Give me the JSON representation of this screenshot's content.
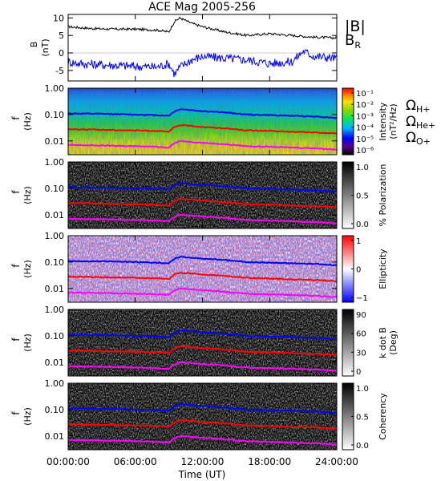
{
  "chart_data": [
    {
      "type": "line",
      "title": "ACE Mag 2005-256",
      "ylabel": "B",
      "yunit": "(nT)",
      "ylim": [
        -8,
        11
      ],
      "yticks": [
        10,
        5,
        0,
        -5
      ],
      "x_range_hours": [
        0,
        24
      ],
      "series": [
        {
          "name": "|B|",
          "color": "#000000",
          "x": [
            0,
            2,
            4,
            6,
            8,
            9,
            9.5,
            10,
            11,
            12,
            14,
            16,
            18,
            20,
            22,
            24
          ],
          "values": [
            7.5,
            7.0,
            6.8,
            6.8,
            6.5,
            6.0,
            9.0,
            10.0,
            8.5,
            7.5,
            6.0,
            5.0,
            5.5,
            5.0,
            4.5,
            4.3
          ]
        },
        {
          "name": "B_R",
          "color": "#0000ff",
          "x": [
            0,
            1,
            2,
            4,
            6,
            8,
            9,
            9.5,
            10,
            11,
            12,
            14,
            16,
            18,
            20,
            21,
            22,
            24
          ],
          "values": [
            -2.5,
            -3.0,
            -3.2,
            -3.5,
            -3.8,
            -4.0,
            -3.0,
            -6.0,
            -4.0,
            -2.0,
            -1.0,
            -1.5,
            -2.0,
            -3.0,
            -2.5,
            0.5,
            -1.0,
            -1.5
          ]
        }
      ]
    },
    {
      "type": "heatmap",
      "ylabel": "f",
      "yunit": "(Hz)",
      "yscale": "log",
      "ylim": [
        0.003,
        1.0
      ],
      "yticks": [
        "1.00",
        "0.10",
        "0.01"
      ],
      "colorbar": {
        "label": "Intensity",
        "unit": "(nT²/Hz)",
        "scale": "rainbow",
        "ticks": [
          "10⁻¹",
          "10⁻²",
          "10⁻³",
          "10⁻⁴",
          "10⁻⁵",
          "10⁻⁶"
        ]
      },
      "overlays": [
        "H+",
        "He+",
        "O+"
      ]
    },
    {
      "type": "heatmap",
      "ylabel": "f",
      "yunit": "(Hz)",
      "yscale": "log",
      "ylim": [
        0.003,
        1.0
      ],
      "yticks": [
        "1.00",
        "0.10",
        "0.01"
      ],
      "colorbar": {
        "label": "% Polarization",
        "scale": "grayscale",
        "ticks": [
          "1.0",
          "0.5",
          "0.0"
        ]
      },
      "overlays": [
        "H+",
        "He+",
        "O+"
      ]
    },
    {
      "type": "heatmap",
      "ylabel": "f",
      "yunit": "(Hz)",
      "yscale": "log",
      "ylim": [
        0.003,
        1.0
      ],
      "yticks": [
        "1.00",
        "0.10",
        "0.01"
      ],
      "colorbar": {
        "label": "Ellipticity",
        "scale": "bluewhitered",
        "ticks": [
          "1",
          "0",
          "−1"
        ]
      },
      "overlays": [
        "H+",
        "He+",
        "O+"
      ]
    },
    {
      "type": "heatmap",
      "ylabel": "f",
      "yunit": "(Hz)",
      "yscale": "log",
      "ylim": [
        0.003,
        1.0
      ],
      "yticks": [
        "1.00",
        "0.10",
        "0.01"
      ],
      "colorbar": {
        "label": "k dot B",
        "unit": "(Deg)",
        "scale": "grayscale",
        "ticks": [
          "90",
          "60",
          "30",
          "0"
        ]
      },
      "overlays": [
        "H+",
        "He+",
        "O+"
      ]
    },
    {
      "type": "heatmap",
      "ylabel": "f",
      "yunit": "(Hz)",
      "yscale": "log",
      "ylim": [
        0.003,
        1.0
      ],
      "yticks": [
        "1.00",
        "0.10",
        "0.01"
      ],
      "colorbar": {
        "label": "Coherency",
        "scale": "grayscale",
        "ticks": [
          "1.0",
          "0.5",
          "0.0"
        ]
      },
      "overlays": [
        "H+",
        "He+",
        "O+"
      ]
    }
  ],
  "gyrofrequencies": [
    {
      "symbol": "Ω",
      "sub": "H+",
      "color": "#0000ff",
      "x": [
        0,
        4,
        8,
        9,
        9.5,
        10,
        12,
        14,
        16,
        18,
        20,
        22,
        24
      ],
      "values": [
        0.11,
        0.105,
        0.095,
        0.09,
        0.13,
        0.16,
        0.135,
        0.12,
        0.1,
        0.095,
        0.09,
        0.085,
        0.075
      ]
    },
    {
      "symbol": "Ω",
      "sub": "He+",
      "color": "#ff0000",
      "x": [
        0,
        4,
        8,
        9,
        9.5,
        10,
        12,
        14,
        16,
        18,
        20,
        22,
        24
      ],
      "values": [
        0.028,
        0.026,
        0.024,
        0.022,
        0.033,
        0.04,
        0.034,
        0.03,
        0.025,
        0.024,
        0.022,
        0.021,
        0.019
      ]
    },
    {
      "symbol": "Ω",
      "sub": "O+",
      "color": "#ff00ff",
      "x": [
        0,
        4,
        8,
        9,
        9.5,
        10,
        12,
        14,
        16,
        18,
        20,
        22,
        24
      ],
      "values": [
        0.007,
        0.0066,
        0.006,
        0.0056,
        0.0082,
        0.01,
        0.0085,
        0.0075,
        0.0063,
        0.006,
        0.0056,
        0.0053,
        0.0047
      ]
    }
  ],
  "legend_top": [
    {
      "text": "|B|",
      "color": "#000000"
    },
    {
      "text": "B",
      "sub": "R",
      "color": "#0000ff"
    }
  ],
  "x_axis": {
    "ticks": [
      {
        "hour": 0,
        "label": "00:00:00"
      },
      {
        "hour": 6,
        "label": "06:00:00"
      },
      {
        "hour": 12,
        "label": "12:00:00"
      },
      {
        "hour": 18,
        "label": "18:00:00"
      },
      {
        "hour": 24,
        "label": "24:00:00"
      }
    ],
    "label": "Time (UT)"
  }
}
